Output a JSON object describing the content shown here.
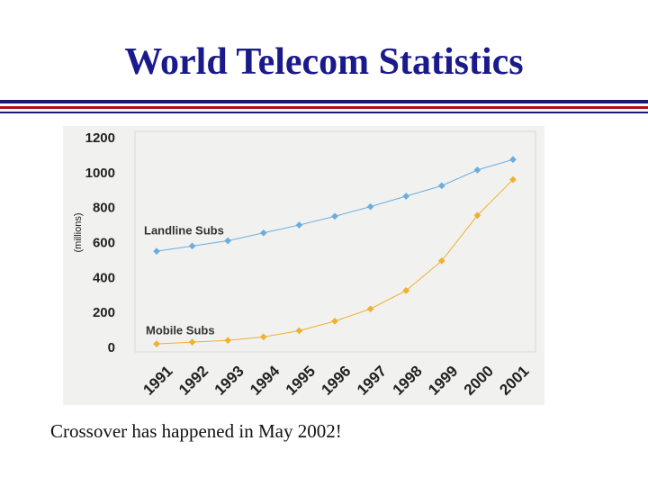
{
  "slide": {
    "title": "World Telecom Statistics",
    "caption": "Crossover has happened in May 2002!"
  },
  "colors": {
    "title": "#1a1a8c",
    "rule_navy": "#1a1a6e",
    "rule_red": "#b01020",
    "landline": "#6aaee0",
    "mobile": "#f0b030"
  },
  "chart_data": {
    "type": "line",
    "ylabel": "(millions)",
    "xlabel": "",
    "ylim": [
      0,
      1200
    ],
    "yticks": [
      0,
      200,
      400,
      600,
      800,
      1000,
      1200
    ],
    "x": [
      "1991",
      "1992",
      "1993",
      "1994",
      "1995",
      "1996",
      "1997",
      "1998",
      "1999",
      "2000",
      "2001"
    ],
    "grid": false,
    "series": [
      {
        "name": "Landline Subs",
        "values": [
          545,
          575,
          605,
          650,
          695,
          745,
          800,
          860,
          920,
          1010,
          1070
        ]
      },
      {
        "name": "Mobile Subs",
        "values": [
          15,
          25,
          35,
          55,
          90,
          145,
          215,
          320,
          490,
          750,
          955
        ]
      }
    ]
  }
}
